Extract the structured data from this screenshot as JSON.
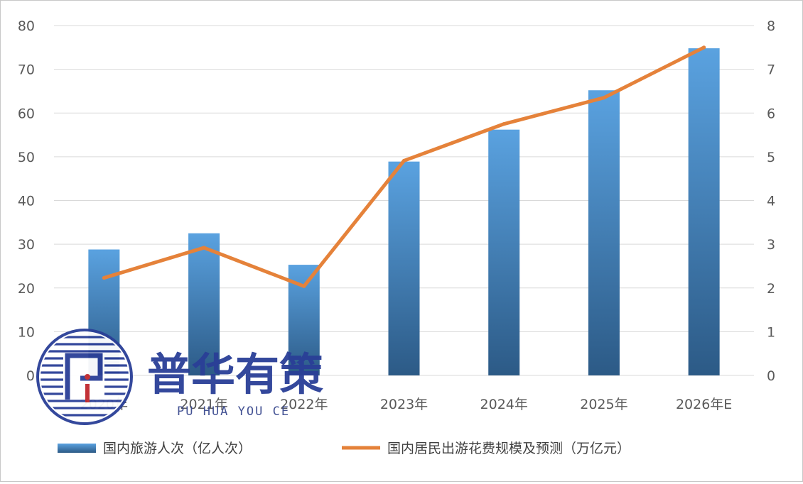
{
  "chart_data": {
    "type": "bar",
    "categories": [
      "2020年",
      "2021年",
      "2022年",
      "2023年",
      "2024年",
      "2025年",
      "2026年E"
    ],
    "series": [
      {
        "name": "国内旅游人次（亿人次）",
        "type": "bar",
        "axis": "left",
        "values": [
          28.8,
          32.5,
          25.3,
          48.9,
          56.2,
          65.2,
          74.8
        ]
      },
      {
        "name": "国内居民出游花费规模及预测（万亿元）",
        "type": "line",
        "axis": "right",
        "values": [
          2.23,
          2.92,
          2.04,
          4.91,
          5.75,
          6.35,
          7.5
        ]
      }
    ],
    "y_left": {
      "ylim": [
        0,
        80
      ],
      "ticks": [
        "0",
        "10",
        "20",
        "30",
        "40",
        "50",
        "60",
        "70",
        "80"
      ]
    },
    "y_right": {
      "ylim": [
        0,
        8
      ],
      "ticks": [
        "0",
        "1",
        "2",
        "3",
        "4",
        "5",
        "6",
        "7",
        "8"
      ]
    },
    "grid": true,
    "legend_position": "bottom",
    "colors": {
      "bar_top": "#5aa2e0",
      "bar_bottom": "#2c5a86",
      "line": "#e5823a",
      "grid": "#d9d9d9",
      "axis_text": "#595959"
    }
  },
  "watermark": {
    "name_cn": "普华有策",
    "name_en": "PU HUA YOU CE",
    "logo_icon": "puhua-logo-icon"
  }
}
